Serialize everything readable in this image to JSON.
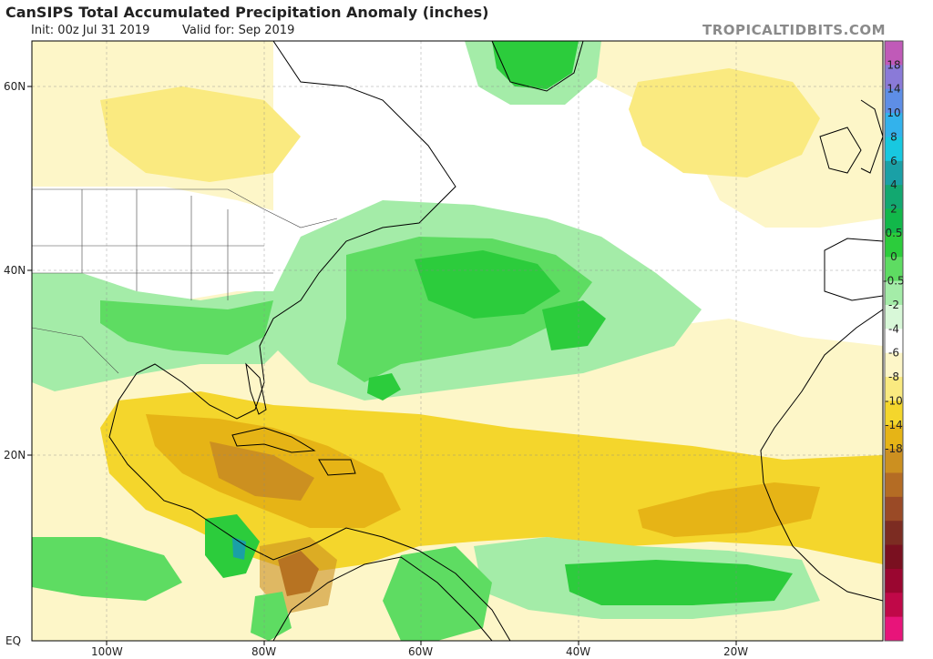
{
  "header": {
    "title": "CanSIPS Total Accumulated Precipitation Anomaly (inches)",
    "init": "Init: 00z Jul 31 2019",
    "valid": "Valid for: Sep 2019",
    "brand": "TROPICALTIDBITS.COM"
  },
  "axes": {
    "lat_labels": [
      "60N",
      "40N",
      "20N",
      "EQ"
    ],
    "lon_labels": [
      "100W",
      "80W",
      "60W",
      "40W",
      "20W"
    ]
  },
  "colorbar": {
    "labels": [
      "18",
      "14",
      "10",
      "8",
      "6",
      "4",
      "2",
      "0.5",
      "0",
      "-0.5",
      "-2",
      "-4",
      "-6",
      "-8",
      "-10",
      "-14",
      "-18"
    ],
    "colors": [
      "#c05ab8",
      "#8a7ad8",
      "#5e8ee6",
      "#33b2ec",
      "#18c8e0",
      "#1aa0a6",
      "#12a870",
      "#12b84a",
      "#2ccc3c",
      "#5edc62",
      "#a4eca8",
      "#d8f8d8",
      "#ffffff",
      "#fdf6c8",
      "#faea80",
      "#f4d62c",
      "#e6b416",
      "#cc9020",
      "#b46c24",
      "#9a4a26",
      "#7c2c22",
      "#7a1020",
      "#9a0630",
      "#c00848",
      "#e8147a"
    ]
  }
}
